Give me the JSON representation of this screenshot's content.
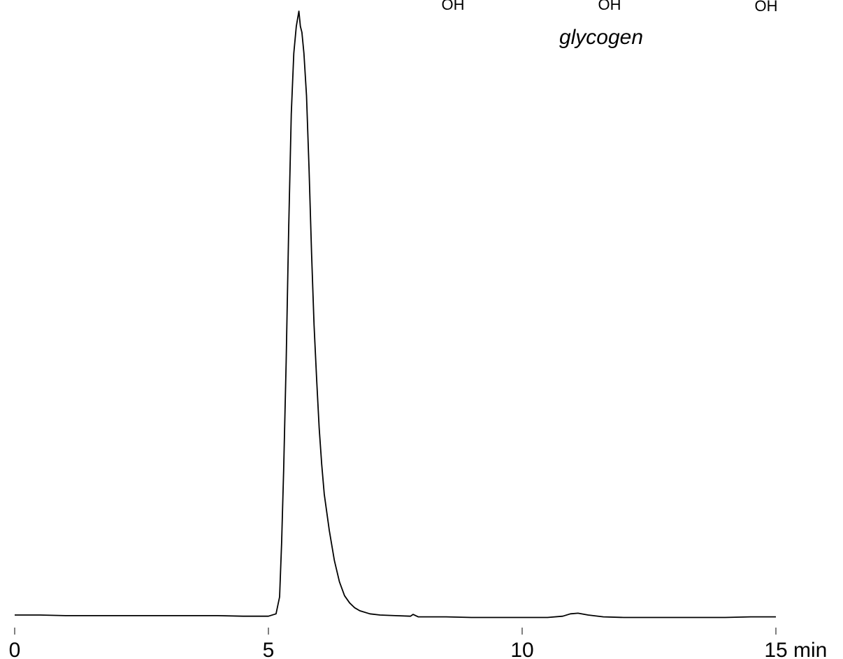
{
  "chart_data": {
    "type": "line",
    "title": "",
    "xlabel": "",
    "ylabel": "",
    "x_unit": "min",
    "xlim": [
      0,
      15
    ],
    "ylim": [
      0,
      1.0
    ],
    "x_ticks": [
      0,
      5,
      10,
      15
    ],
    "x_tick_labels": [
      "0",
      "5",
      "10",
      "15"
    ],
    "grid": false,
    "legend": "none",
    "line_color": "#000000",
    "annotations": {
      "compound": "glycogen",
      "structure_labels": [
        "OH",
        "OH",
        "OH"
      ]
    },
    "series": [
      {
        "values_x": [
          0.0,
          0.5,
          1.0,
          1.5,
          2.0,
          2.5,
          3.0,
          3.5,
          4.0,
          4.5,
          5.0,
          5.15,
          5.22,
          5.26,
          5.3,
          5.35,
          5.4,
          5.45,
          5.5,
          5.55,
          5.6,
          5.63,
          5.66,
          5.7,
          5.75,
          5.8,
          5.85,
          5.9,
          5.95,
          6.0,
          6.05,
          6.1,
          6.2,
          6.3,
          6.4,
          6.5,
          6.6,
          6.7,
          6.8,
          7.0,
          7.2,
          7.5,
          7.8,
          7.85,
          7.95,
          8.5,
          9.0,
          9.5,
          10.0,
          10.5,
          10.8,
          10.95,
          11.1,
          11.3,
          11.6,
          12.0,
          12.5,
          13.0,
          13.5,
          14.0,
          14.5,
          15.0
        ],
        "values_y": [
          0.0,
          0.0,
          -0.001,
          -0.001,
          -0.001,
          -0.001,
          -0.001,
          -0.001,
          -0.001,
          -0.002,
          -0.002,
          0.002,
          0.03,
          0.12,
          0.24,
          0.42,
          0.64,
          0.83,
          0.93,
          0.975,
          1.0,
          0.975,
          0.965,
          0.93,
          0.86,
          0.74,
          0.6,
          0.48,
          0.39,
          0.31,
          0.25,
          0.2,
          0.14,
          0.09,
          0.055,
          0.032,
          0.02,
          0.012,
          0.007,
          0.002,
          0.0,
          -0.001,
          -0.002,
          0.001,
          -0.003,
          -0.003,
          -0.004,
          -0.004,
          -0.004,
          -0.004,
          -0.002,
          0.002,
          0.003,
          0.0,
          -0.003,
          -0.004,
          -0.004,
          -0.004,
          -0.004,
          -0.004,
          -0.003,
          -0.003
        ]
      }
    ]
  }
}
